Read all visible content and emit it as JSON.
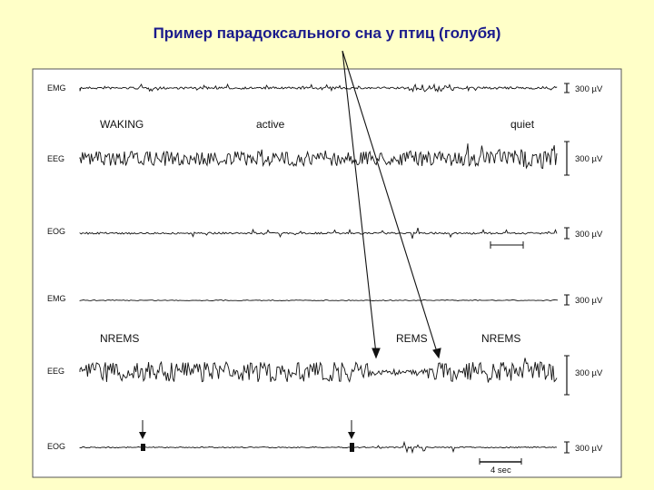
{
  "title": "Пример парадоксального сна у птиц (голубя)",
  "traces": {
    "top": {
      "emg": "EMG",
      "eeg": "EEG",
      "eog": "EOG",
      "states": {
        "waking": "WAKING",
        "active": "active",
        "quiet": "quiet"
      }
    },
    "bottom": {
      "emg": "EMG",
      "eeg": "EEG",
      "eog": "EOG",
      "states": {
        "nrems1": "NREMS",
        "rems": "REMS",
        "nrems2": "NREMS"
      }
    }
  },
  "scale_label": "300 µV",
  "time_scale": "4 sec"
}
